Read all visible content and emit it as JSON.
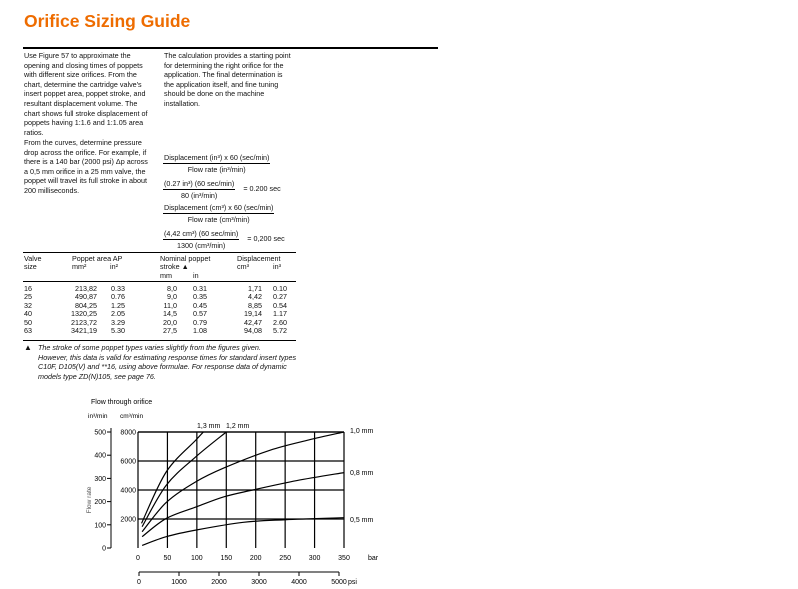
{
  "title": "Orifice Sizing Guide",
  "colors": {
    "title": "#ee6c00",
    "text": "#111111"
  },
  "left_column": {
    "paragraph1": [
      "Use Figure 57 to approximate the",
      "opening and closing times of poppets",
      "with different size orifices. From the",
      "chart, determine the cartridge valve's",
      "insert poppet area, poppet stroke, and",
      "resultant displacement volume. The",
      "chart shows full stroke displacement of",
      "poppets having 1:1.6 and 1:1.05 area",
      "ratios."
    ],
    "paragraph2": [
      "From the curves, determine pressure",
      "drop across the orifice. For example, if",
      "there is a 140 bar (2000 psi) Δp across",
      "a 0,5 mm orifice in a 25 mm valve, the",
      "poppet will travel its full stroke in about",
      "200 milliseconds."
    ]
  },
  "right_column": {
    "paragraph1": [
      "The calculation provides a starting point",
      "for determining the right orifice for the",
      "application. The final determination is",
      "the application itself, and fine tuning",
      "should be done on the machine",
      "installation."
    ]
  },
  "formulas": [
    {
      "numerator": "Displacement (in³) x 60 (sec/min)",
      "denominator": "Flow rate (in³/min)",
      "result": ""
    },
    {
      "numerator": "(0.27 in³) (60 sec/min)",
      "denominator": "80 (in³/min)",
      "result": "= 0.200 sec"
    },
    {
      "numerator": "Displacement (cm³) x 60 (sec/min)",
      "denominator": "Flow rate (cm³/min)",
      "result": ""
    },
    {
      "numerator": "(4,42 cm³) (60 sec/min)",
      "denominator": "1300 (cm³/min)",
      "result": "= 0,200 sec"
    }
  ],
  "table": {
    "headers": {
      "valve": [
        "Valve",
        "size"
      ],
      "area": "Poppet area AP",
      "area_mm": "mm²",
      "area_in": "in²",
      "stroke": [
        "Nominal poppet",
        "stroke ▲"
      ],
      "stroke_mm": "mm",
      "stroke_in": "in",
      "disp": "Displacement",
      "disp_cm": "cm³",
      "disp_in": "in³"
    },
    "rows": [
      [
        "16",
        "213,82",
        "0.33",
        "8,0",
        "0.31",
        "1,71",
        "0.10"
      ],
      [
        "25",
        "490,87",
        "0.76",
        "9,0",
        "0.35",
        "4,42",
        "0.27"
      ],
      [
        "32",
        "804,25",
        "1.25",
        "11,0",
        "0.45",
        "8,85",
        "0.54"
      ],
      [
        "40",
        "1320,25",
        "2.05",
        "14,5",
        "0.57",
        "19,14",
        "1.17"
      ],
      [
        "50",
        "2123,72",
        "3.29",
        "20,0",
        "0.79",
        "42,47",
        "2.60"
      ],
      [
        "63",
        "3421,19",
        "5.30",
        "27,5",
        "1.08",
        "94,08",
        "5.72"
      ]
    ],
    "footnote_marker": "▲",
    "footnote": [
      "The stroke of some poppet types varies slightly from the figures given.",
      "However, this data is valid for estimating response times for standard insert types",
      "C10F, D105(V) and **16, using above formulae. For response data of dynamic",
      "models type ZD(N)105, see page 76."
    ]
  },
  "chart_data": {
    "type": "line",
    "title": "Flow through orifice",
    "ylabel": "Flow rate",
    "y_units_left": "in³/min",
    "y_units_right": "cm³/min",
    "xlabel_primary": "bar",
    "xlabel_secondary": "psi",
    "xlim": [
      0,
      350
    ],
    "ylim": [
      0,
      8000
    ],
    "x_ticks": [
      0,
      50,
      100,
      150,
      200,
      250,
      300,
      350
    ],
    "y_ticks_cm3": [
      2000,
      4000,
      6000,
      8000
    ],
    "y_ticks_in3": [
      0,
      100,
      200,
      300,
      400,
      500
    ],
    "y_in3_max": 500,
    "psi_ticks": [
      0,
      1000,
      2000,
      3000,
      4000,
      5000
    ],
    "psi_range": [
      0,
      5000
    ],
    "grid": true,
    "series": [
      {
        "name": "0,5 mm",
        "x": [
          7,
          48,
          99,
          179,
          250,
          350
        ],
        "y": [
          180,
          780,
          1240,
          1770,
          1950,
          2090
        ]
      },
      {
        "name": "0,8 mm",
        "x": [
          7,
          48,
          100,
          146,
          194,
          270,
          350
        ],
        "y": [
          780,
          2040,
          2850,
          3530,
          3990,
          4650,
          5200
        ]
      },
      {
        "name": "1,0 mm",
        "x": [
          7,
          48,
          98,
          146,
          224,
          290,
          350
        ],
        "y": [
          1120,
          3140,
          4560,
          5520,
          6740,
          7450,
          8000
        ]
      },
      {
        "name": "1,2 mm",
        "x": [
          7,
          48,
          98,
          150
        ],
        "y": [
          1470,
          4330,
          6280,
          8000
        ]
      },
      {
        "name": "1,3 mm",
        "x": [
          6,
          48,
          98,
          111
        ],
        "y": [
          1700,
          5250,
          7430,
          8000
        ]
      }
    ]
  }
}
